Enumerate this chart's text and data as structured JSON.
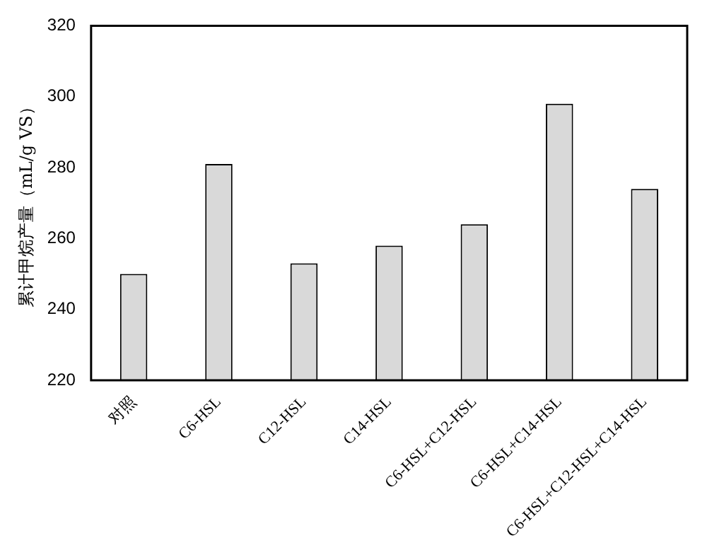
{
  "chart_data": {
    "type": "bar",
    "ylabel": "累计甲烷产量（mL/g VS）",
    "categories": [
      "对照",
      "C6-HSL",
      "C12-HSL",
      "C14-HSL",
      "C6-HSL+C12-HSL",
      "C6-HSL+C14-HSL",
      "C6-HSL+C12-HSL+C14-HSL"
    ],
    "values": [
      250,
      281,
      253,
      258,
      264,
      298,
      274
    ],
    "color": "#d9d9d9",
    "ylim": [
      220,
      320
    ],
    "yticks": [
      220,
      240,
      260,
      280,
      300,
      320
    ],
    "grid": false,
    "legend": false
  }
}
